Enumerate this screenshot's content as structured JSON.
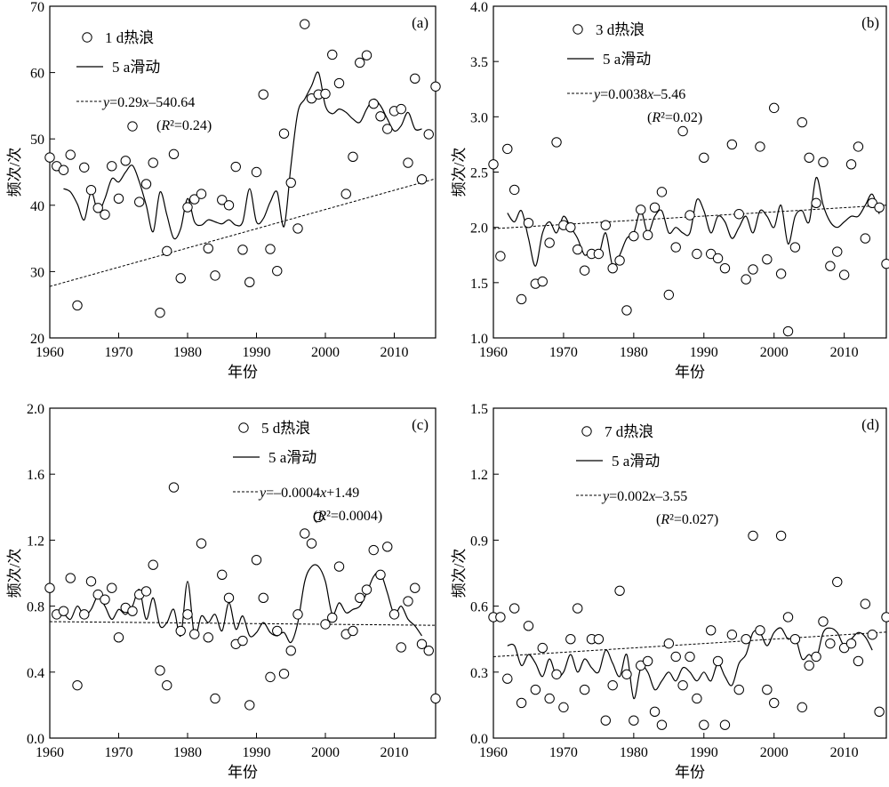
{
  "chart_data": [
    {
      "type": "scatter",
      "panel_label": "(a)",
      "xlabel": "年份",
      "ylabel": "频次/次",
      "xlim": [
        1960,
        2016
      ],
      "ylim": [
        20,
        70
      ],
      "xticks": [
        1960,
        1970,
        1980,
        1990,
        2000,
        2010
      ],
      "yticks": [
        20,
        30,
        40,
        50,
        60,
        70
      ],
      "legend": {
        "points": "1 d热浪",
        "smooth": "5 a滑动",
        "trend": "y=0.29x–540.64",
        "r2": "(R²=0.24)"
      },
      "trend": {
        "slope": 0.29,
        "intercept": -540.64
      },
      "x": [
        1960,
        1961,
        1962,
        1963,
        1964,
        1965,
        1966,
        1967,
        1968,
        1969,
        1970,
        1971,
        1972,
        1973,
        1974,
        1975,
        1976,
        1977,
        1978,
        1979,
        1980,
        1981,
        1982,
        1983,
        1984,
        1985,
        1986,
        1987,
        1988,
        1989,
        1990,
        1991,
        1992,
        1993,
        1994,
        1995,
        1996,
        1997,
        1998,
        1999,
        2000,
        2001,
        2002,
        2003,
        2004,
        2005,
        2006,
        2007,
        2008,
        2009,
        2010,
        2011,
        2012,
        2013,
        2014,
        2015,
        2016
      ],
      "y": [
        47.2,
        45.9,
        45.3,
        47.6,
        24.9,
        45.7,
        42.3,
        39.6,
        38.6,
        45.9,
        41.0,
        46.7,
        51.9,
        40.5,
        43.2,
        46.4,
        23.8,
        33.1,
        47.7,
        29.0,
        39.7,
        40.9,
        41.7,
        33.5,
        29.4,
        40.8,
        40.0,
        45.8,
        33.3,
        28.4,
        45.0,
        56.7,
        33.4,
        30.1,
        50.8,
        43.4,
        36.5,
        67.3,
        56.1,
        56.7,
        56.8,
        62.7,
        58.4,
        41.7,
        47.3,
        61.5,
        62.6,
        55.3,
        53.4,
        51.5,
        54.2,
        54.5,
        46.4,
        59.1,
        43.9,
        50.7,
        57.9
      ],
      "smooth_x": [
        1962,
        1963,
        1964,
        1965,
        1966,
        1967,
        1968,
        1969,
        1970,
        1971,
        1972,
        1973,
        1974,
        1975,
        1976,
        1977,
        1978,
        1979,
        1980,
        1981,
        1982,
        1983,
        1984,
        1985,
        1986,
        1987,
        1988,
        1989,
        1990,
        1991,
        1992,
        1993,
        1994,
        1995,
        1996,
        1997,
        1998,
        1999,
        2000,
        2001,
        2002,
        2003,
        2004,
        2005,
        2006,
        2007,
        2008,
        2009,
        2010,
        2011,
        2012,
        2013,
        2014
      ],
      "smooth_y": [
        42.5,
        42.0,
        40.2,
        37.8,
        42.0,
        39.0,
        41.0,
        44.0,
        43.5,
        45.0,
        46.0,
        43.5,
        40.0,
        36.0,
        42.0,
        38.5,
        35.0,
        36.5,
        41.0,
        37.5,
        37.0,
        37.8,
        37.5,
        37.2,
        37.8,
        37.0,
        37.5,
        42.5,
        37.5,
        38.0,
        40.5,
        42.0,
        36.8,
        46.0,
        54.0,
        56.0,
        58.0,
        60.0,
        55.0,
        53.8,
        54.5,
        54.0,
        53.0,
        52.5,
        54.5,
        56.0,
        55.0,
        53.0,
        51.2,
        52.0,
        54.0,
        51.5,
        51.5
      ]
    },
    {
      "type": "scatter",
      "panel_label": "(b)",
      "xlabel": "年份",
      "ylabel": "频次/次",
      "xlim": [
        1960,
        2016
      ],
      "ylim": [
        1.0,
        4.0
      ],
      "xticks": [
        1960,
        1970,
        1980,
        1990,
        2000,
        2010
      ],
      "yticks": [
        1.0,
        1.5,
        2.0,
        2.5,
        3.0,
        3.5,
        4.0
      ],
      "legend": {
        "points": "3 d热浪",
        "smooth": "5 a滑动",
        "trend": "y=0.0038x–5.46",
        "r2": "(R²=0.02)"
      },
      "trend": {
        "slope": 0.0038,
        "intercept": -5.46
      },
      "x": [
        1960,
        1961,
        1962,
        1963,
        1964,
        1965,
        1966,
        1967,
        1968,
        1969,
        1970,
        1971,
        1972,
        1973,
        1974,
        1975,
        1976,
        1977,
        1978,
        1979,
        1980,
        1981,
        1982,
        1983,
        1984,
        1985,
        1986,
        1987,
        1988,
        1989,
        1990,
        1991,
        1992,
        1993,
        1994,
        1995,
        1996,
        1997,
        1998,
        1999,
        2000,
        2001,
        2002,
        2003,
        2004,
        2005,
        2006,
        2007,
        2008,
        2009,
        2010,
        2011,
        2012,
        2013,
        2014,
        2015,
        2016
      ],
      "y": [
        2.57,
        1.74,
        2.71,
        2.34,
        1.35,
        2.04,
        1.49,
        1.51,
        1.86,
        2.77,
        2.02,
        2.0,
        1.8,
        1.61,
        1.76,
        1.76,
        2.02,
        1.63,
        1.7,
        1.25,
        1.92,
        2.16,
        1.93,
        2.18,
        2.32,
        1.39,
        1.82,
        2.87,
        2.11,
        1.76,
        2.63,
        1.76,
        1.72,
        1.63,
        2.75,
        2.12,
        1.53,
        1.62,
        2.73,
        1.71,
        3.08,
        1.58,
        1.06,
        1.82,
        2.95,
        2.63,
        2.22,
        2.59,
        1.65,
        1.78,
        1.57,
        2.57,
        2.73,
        1.9,
        2.22,
        2.18,
        1.67
      ],
      "smooth_x": [
        1962,
        1963,
        1964,
        1965,
        1966,
        1967,
        1968,
        1969,
        1970,
        1971,
        1972,
        1973,
        1974,
        1975,
        1976,
        1977,
        1978,
        1979,
        1980,
        1981,
        1982,
        1983,
        1984,
        1985,
        1986,
        1987,
        1988,
        1989,
        1990,
        1991,
        1992,
        1993,
        1994,
        1995,
        1996,
        1997,
        1998,
        1999,
        2000,
        2001,
        2002,
        2003,
        2004,
        2005,
        2006,
        2007,
        2008,
        2009,
        2010,
        2011,
        2012,
        2013,
        2014
      ],
      "smooth_y": [
        2.13,
        2.05,
        2.15,
        1.9,
        1.65,
        1.95,
        2.05,
        1.95,
        2.1,
        2.0,
        1.9,
        1.75,
        1.8,
        1.75,
        1.95,
        1.65,
        1.75,
        1.9,
        1.95,
        2.15,
        1.95,
        2.1,
        2.15,
        1.95,
        2.0,
        1.95,
        1.95,
        2.25,
        2.15,
        1.95,
        2.1,
        2.05,
        1.9,
        2.0,
        2.1,
        1.95,
        2.15,
        2.1,
        2.0,
        2.2,
        1.85,
        2.1,
        2.15,
        2.05,
        2.45,
        2.2,
        2.05,
        2.0,
        2.05,
        2.1,
        2.1,
        2.2,
        2.3
      ],
      "smooth_extra": [
        2015,
        2.12
      ]
    },
    {
      "type": "scatter",
      "panel_label": "(c)",
      "xlabel": "年份",
      "ylabel": "频次/次",
      "xlim": [
        1960,
        2016
      ],
      "ylim": [
        0,
        2.0
      ],
      "xticks": [
        1960,
        1970,
        1980,
        1990,
        2000,
        2010
      ],
      "yticks": [
        0,
        0.4,
        0.8,
        1.2,
        1.6,
        2.0
      ],
      "legend": {
        "points": "5 d热浪",
        "smooth": "5 a滑动",
        "trend": "y=–0.0004x+1.49",
        "r2": "(R²=0.0004)"
      },
      "trend": {
        "slope": -0.0004,
        "intercept": 1.49
      },
      "x": [
        1960,
        1961,
        1962,
        1963,
        1964,
        1965,
        1966,
        1967,
        1968,
        1969,
        1970,
        1971,
        1972,
        1973,
        1974,
        1975,
        1976,
        1977,
        1978,
        1979,
        1980,
        1981,
        1982,
        1983,
        1984,
        1985,
        1986,
        1987,
        1988,
        1989,
        1990,
        1991,
        1992,
        1993,
        1994,
        1995,
        1996,
        1997,
        1998,
        1999,
        2000,
        2001,
        2002,
        2003,
        2004,
        2005,
        2006,
        2007,
        2008,
        2009,
        2010,
        2011,
        2012,
        2013,
        2014,
        2015,
        2016
      ],
      "y": [
        0.91,
        0.75,
        0.77,
        0.97,
        0.32,
        0.75,
        0.95,
        0.87,
        0.84,
        0.91,
        0.61,
        0.79,
        0.77,
        0.87,
        0.89,
        1.05,
        0.41,
        0.32,
        1.52,
        0.65,
        0.75,
        0.63,
        1.18,
        0.61,
        0.24,
        0.99,
        0.85,
        0.57,
        0.59,
        0.2,
        1.08,
        0.85,
        0.37,
        0.65,
        0.39,
        0.53,
        0.75,
        1.24,
        1.18,
        1.34,
        0.69,
        0.73,
        1.04,
        0.63,
        0.65,
        0.85,
        0.9,
        1.14,
        0.99,
        1.16,
        0.75,
        0.55,
        0.83,
        0.91,
        0.57,
        0.53,
        0.24
      ],
      "smooth_x": [
        1962,
        1963,
        1964,
        1965,
        1966,
        1967,
        1968,
        1969,
        1970,
        1971,
        1972,
        1973,
        1974,
        1975,
        1976,
        1977,
        1978,
        1979,
        1980,
        1981,
        1982,
        1983,
        1984,
        1985,
        1986,
        1987,
        1988,
        1989,
        1990,
        1991,
        1992,
        1993,
        1994,
        1995,
        1996,
        1997,
        1998,
        1999,
        2000,
        2001,
        2002,
        2003,
        2004,
        2005,
        2006,
        2007,
        2008,
        2009,
        2010,
        2011,
        2012,
        2013,
        2014
      ],
      "smooth_y": [
        0.76,
        0.72,
        0.8,
        0.74,
        0.78,
        0.86,
        0.8,
        0.72,
        0.78,
        0.75,
        0.8,
        0.9,
        0.72,
        0.85,
        0.68,
        0.7,
        0.78,
        0.62,
        0.95,
        0.62,
        0.74,
        0.7,
        0.75,
        0.65,
        0.82,
        0.66,
        0.74,
        0.62,
        0.64,
        0.7,
        0.64,
        0.62,
        0.64,
        0.58,
        0.7,
        0.95,
        1.04,
        1.04,
        0.95,
        0.75,
        0.82,
        0.76,
        0.78,
        0.8,
        0.88,
        0.98,
        1.0,
        0.88,
        0.75,
        0.8,
        0.72,
        0.68,
        0.62
      ]
    },
    {
      "type": "scatter",
      "panel_label": "(d)",
      "xlabel": "年份",
      "ylabel": "频次/次",
      "xlim": [
        1960,
        2016
      ],
      "ylim": [
        0,
        1.5
      ],
      "xticks": [
        1960,
        1970,
        1980,
        1990,
        2000,
        2010
      ],
      "yticks": [
        0,
        0.3,
        0.6,
        0.9,
        1.2,
        1.5
      ],
      "legend": {
        "points": "7 d热浪",
        "smooth": "5 a滑动",
        "trend": "y=0.002x–3.55",
        "r2": "(R²=0.027)"
      },
      "trend": {
        "slope": 0.002,
        "intercept": -3.55
      },
      "x": [
        1960,
        1961,
        1962,
        1963,
        1964,
        1965,
        1966,
        1967,
        1968,
        1969,
        1970,
        1971,
        1972,
        1973,
        1974,
        1975,
        1976,
        1977,
        1978,
        1979,
        1980,
        1981,
        1982,
        1983,
        1984,
        1985,
        1986,
        1987,
        1988,
        1989,
        1990,
        1991,
        1992,
        1993,
        1994,
        1995,
        1996,
        1997,
        1998,
        1999,
        2000,
        2001,
        2002,
        2003,
        2004,
        2005,
        2006,
        2007,
        2008,
        2009,
        2010,
        2011,
        2012,
        2013,
        2014,
        2015,
        2016
      ],
      "y": [
        0.55,
        0.55,
        0.27,
        0.59,
        0.16,
        0.51,
        0.22,
        0.41,
        0.18,
        0.29,
        0.14,
        0.45,
        0.59,
        0.22,
        0.45,
        0.45,
        0.08,
        0.24,
        0.67,
        0.29,
        0.08,
        0.33,
        0.35,
        0.12,
        0.06,
        0.43,
        0.37,
        0.24,
        0.37,
        0.18,
        0.06,
        0.49,
        0.35,
        0.06,
        0.47,
        0.22,
        0.45,
        0.92,
        0.49,
        0.22,
        0.16,
        0.92,
        0.55,
        0.45,
        0.14,
        0.33,
        0.37,
        0.53,
        0.43,
        0.71,
        0.41,
        0.43,
        0.35,
        0.61,
        0.47,
        0.12,
        0.55
      ],
      "smooth_x": [
        1962,
        1963,
        1964,
        1965,
        1966,
        1967,
        1968,
        1969,
        1970,
        1971,
        1972,
        1973,
        1974,
        1975,
        1976,
        1977,
        1978,
        1979,
        1980,
        1981,
        1982,
        1983,
        1984,
        1985,
        1986,
        1987,
        1988,
        1989,
        1990,
        1991,
        1992,
        1993,
        1994,
        1995,
        1996,
        1997,
        1998,
        1999,
        2000,
        2001,
        2002,
        2003,
        2004,
        2005,
        2006,
        2007,
        2008,
        2009,
        2010,
        2011,
        2012,
        2013,
        2014
      ],
      "smooth_y": [
        0.42,
        0.42,
        0.33,
        0.38,
        0.34,
        0.28,
        0.36,
        0.28,
        0.3,
        0.38,
        0.3,
        0.36,
        0.32,
        0.3,
        0.4,
        0.34,
        0.28,
        0.38,
        0.18,
        0.32,
        0.3,
        0.22,
        0.26,
        0.3,
        0.26,
        0.32,
        0.3,
        0.26,
        0.3,
        0.26,
        0.34,
        0.28,
        0.24,
        0.34,
        0.38,
        0.48,
        0.48,
        0.42,
        0.48,
        0.5,
        0.45,
        0.46,
        0.36,
        0.38,
        0.36,
        0.48,
        0.5,
        0.48,
        0.42,
        0.45,
        0.48,
        0.46,
        0.4
      ]
    }
  ]
}
